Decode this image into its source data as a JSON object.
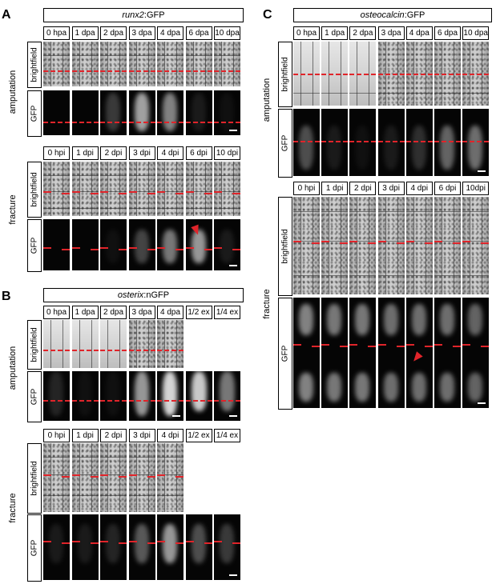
{
  "panels": {
    "A": {
      "letter": "A",
      "title_italic": "runx2",
      "title_rest": ":GFP",
      "amputation_label": "amputation",
      "fracture_label": "fracture",
      "brightfield_label": "brightfield",
      "gfp_label": "GFP",
      "amp_timepoints": [
        "0 hpa",
        "1 dpa",
        "2 dpa",
        "3 dpa",
        "4 dpa",
        "6 dpa",
        "10 dpa"
      ],
      "frac_timepoints": [
        "0 hpi",
        "1 dpi",
        "2 dpi",
        "3 dpi",
        "4 dpi",
        "6 dpi",
        "10 dpi"
      ]
    },
    "B": {
      "letter": "B",
      "title_italic": "osterix",
      "title_rest": ":nGFP",
      "amputation_label": "amputation",
      "fracture_label": "fracture",
      "brightfield_label": "brightfield",
      "gfp_label": "GFP",
      "amp_timepoints": [
        "0 hpa",
        "1 dpa",
        "2 dpa",
        "3 dpa",
        "4 dpa",
        "1/2 ex",
        "1/4 ex"
      ],
      "frac_timepoints": [
        "0 hpi",
        "1 dpi",
        "2 dpi",
        "3 dpi",
        "4 dpi",
        "1/2 ex",
        "1/4 ex"
      ]
    },
    "C": {
      "letter": "C",
      "title_italic": "osteocalcin",
      "title_rest": ":GFP",
      "amputation_label": "amputation",
      "fracture_label": "fracture",
      "brightfield_label": "brightfield",
      "gfp_label": "GFP",
      "amp_timepoints": [
        "0 hpa",
        "1 dpa",
        "2 dpa",
        "3 dpa",
        "4 dpa",
        "6 dpa",
        "10 dpa"
      ],
      "frac_timepoints": [
        "0 hpi",
        "1 dpi",
        "2 dpi",
        "3 dpi",
        "4 dpi",
        "6 dpi",
        "10dpi"
      ]
    }
  },
  "colors": {
    "dashed_line": "#e0242a",
    "arrowhead": "#e0242a",
    "gfp_background": "#050505"
  },
  "gfp_intensity": {
    "A_amp": [
      0.0,
      0.0,
      0.25,
      0.75,
      0.6,
      0.1,
      0.05
    ],
    "A_frac": [
      0.0,
      0.0,
      0.05,
      0.3,
      0.55,
      0.7,
      0.1
    ],
    "B_amp": [
      0.15,
      0.05,
      0.05,
      0.7,
      1.0,
      0.95,
      0.55
    ],
    "B_frac": [
      0.1,
      0.1,
      0.15,
      0.4,
      0.7,
      0.35,
      0.25
    ],
    "C_amp": [
      0.35,
      0.1,
      0.05,
      0.1,
      0.2,
      0.45,
      0.5
    ],
    "C_frac": [
      0.6,
      0.55,
      0.55,
      0.5,
      0.5,
      0.5,
      0.45
    ]
  }
}
